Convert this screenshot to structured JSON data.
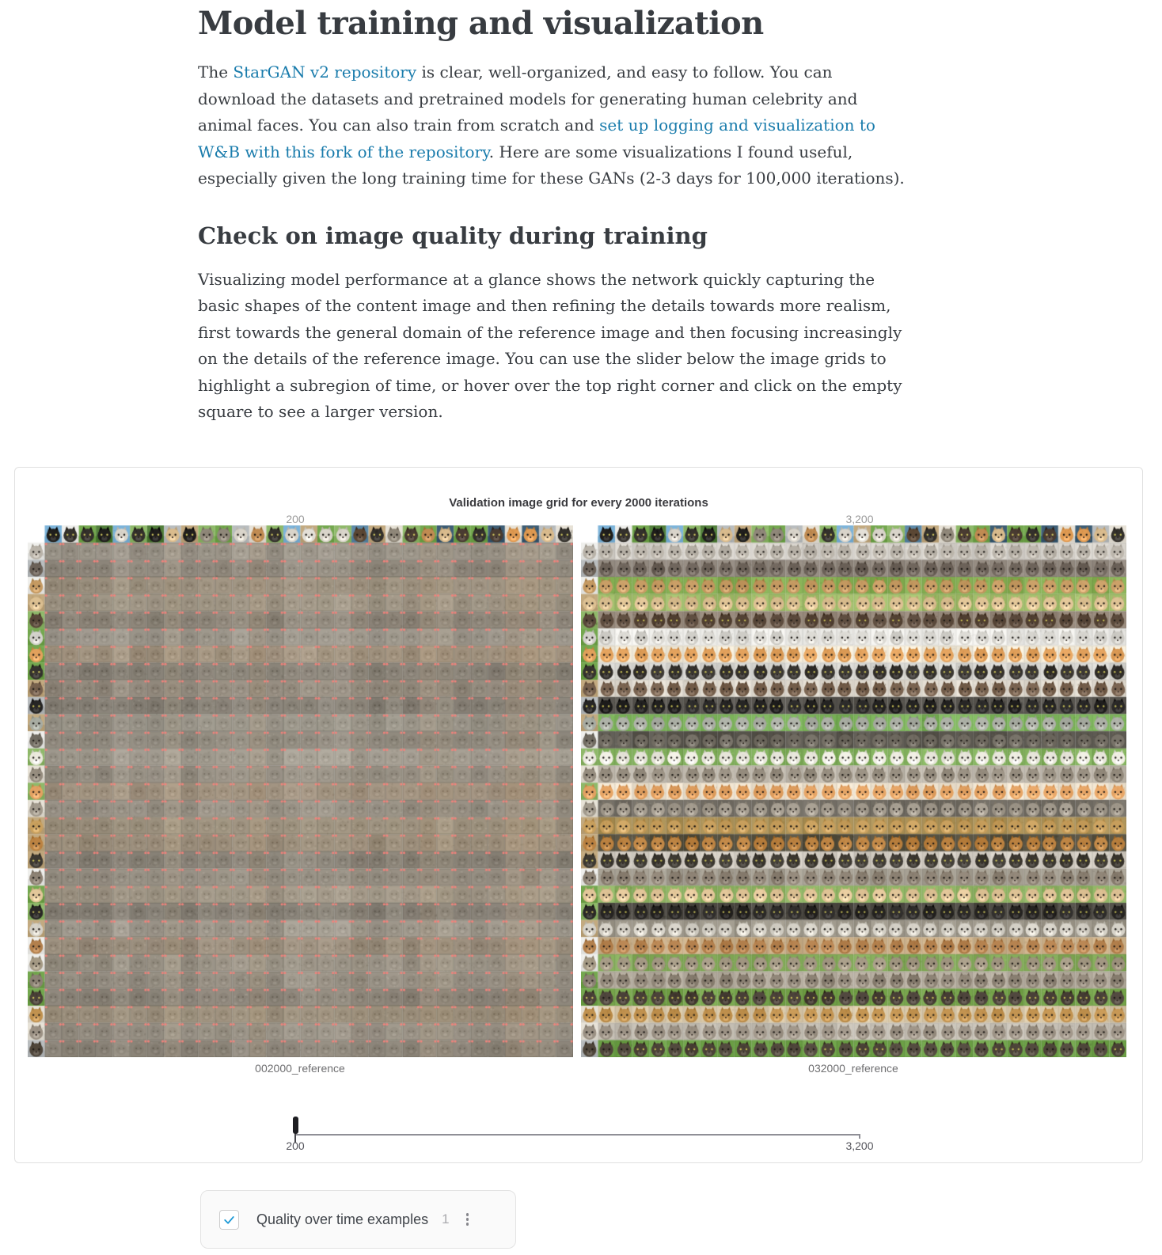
{
  "article": {
    "h1": "Model training and visualization",
    "p1_lines": [
      [
        {
          "t": "The "
        },
        {
          "t": "StarGAN v2 repository",
          "link": true
        },
        {
          "t": " is clear, well-organized, and easy to follow. You can"
        }
      ],
      [
        {
          "t": "download the datasets and pretrained models for generating human celebrity and"
        }
      ],
      [
        {
          "t": "animal faces. You can also train from scratch and "
        },
        {
          "t": "set up logging and visualization to",
          "link": true
        }
      ],
      [
        {
          "t": "W&B with this fork of the repository",
          "link": true
        },
        {
          "t": ". Here are some visualizations I found useful,"
        }
      ],
      [
        {
          "t": "especially given the long training time for these GANs (2-3 days for 100,000 iterations)."
        }
      ]
    ],
    "h2": "Check on image quality during training",
    "p2_lines": [
      [
        {
          "t": "Visualizing model performance at a glance shows the network quickly capturing the"
        }
      ],
      [
        {
          "t": "basic shapes of the content image and then refining the details towards more realism,"
        }
      ],
      [
        {
          "t": "first towards the general domain of the reference image and then focusing increasingly"
        }
      ],
      [
        {
          "t": "on the details of the reference image. You can use the slider below the image grids to"
        }
      ],
      [
        {
          "t": "highlight a subregion of time, or hover over the top right corner and click on the empty"
        }
      ],
      [
        {
          "t": "square to see a larger version."
        }
      ]
    ]
  },
  "panel": {
    "title": "Validation image grid for every 2000 iterations",
    "top_slider": {
      "min": "200",
      "max": "3,200"
    },
    "bottom_slider": {
      "min": "200",
      "max": "3,200"
    },
    "grids": [
      {
        "caption": "002000_reference",
        "stage": "early"
      },
      {
        "caption": "032000_reference",
        "stage": "late"
      }
    ]
  },
  "panel_selector": {
    "label": "Quality over time examples",
    "count": "1",
    "checked": true,
    "menu_icon": "kebab-menu-icon",
    "check_color": "#1e9ad6"
  },
  "colors": {
    "link": "#1a7cac",
    "heading": "#383c41",
    "panel_border": "#e0e0e0",
    "caption": "#6e6e70",
    "slider_handle": "#1e1e22"
  },
  "grid_style": {
    "columns": 32,
    "rows": 31,
    "early_base": "#9d968a",
    "cell_dot_color": "#f4837b",
    "thumb_bgs": [
      "#74a84f",
      "#7db4da",
      "#e7e2d7",
      "#c3aa80",
      "#53803c",
      "#b9bdbf",
      "#8fb96a",
      "#5d89a8",
      "#efefec",
      "#3e5e76"
    ],
    "thumb_furs": [
      "#c08b52",
      "#8a6a43",
      "#33302b",
      "#d9d4ca",
      "#df9a52",
      "#8f8779",
      "#5b4734",
      "#b9b1a5",
      "#d9bb8d",
      "#493b31",
      "#e4e0d8",
      "#1f1e1c"
    ],
    "source_bgs": [
      "#74a84f",
      "#e7e2d7",
      "#c3aa80",
      "#b9bdbf",
      "#8fb96a",
      "#efefec"
    ],
    "row_themes": [
      {
        "f": "#b9b3a9",
        "b": "#d6d2cb"
      },
      {
        "f": "#6b6158",
        "b": "#938a80"
      },
      {
        "f": "#c59a62",
        "b": "#83ad51"
      },
      {
        "f": "#dcc092",
        "b": "#a3c06c"
      },
      {
        "f": "#584739",
        "b": "#96887a"
      },
      {
        "f": "#d4d2cc",
        "b": "#efeeea"
      },
      {
        "f": "#e2a15c",
        "b": "#f4ecda"
      },
      {
        "f": "#35322e",
        "b": "#d9d8d3"
      },
      {
        "f": "#76604d",
        "b": "#e2dcd1"
      },
      {
        "f": "#262524",
        "b": "#5a5751"
      },
      {
        "f": "#a8aca2",
        "b": "#7cb45a"
      },
      {
        "f": "#716c62",
        "b": "#5a574f"
      },
      {
        "f": "#eceadf",
        "b": "#82b15c"
      },
      {
        "f": "#968d7f",
        "b": "#c0b9ad"
      },
      {
        "f": "#e2a162",
        "b": "#f0e4d0"
      },
      {
        "f": "#a29a8d",
        "b": "#716c63"
      },
      {
        "f": "#c9a05e",
        "b": "#ac9258"
      },
      {
        "f": "#bc8342",
        "b": "#55503f"
      },
      {
        "f": "#3c3831",
        "b": "#d2ccc2"
      },
      {
        "f": "#8d8274",
        "b": "#a7a194"
      },
      {
        "f": "#e3c79a",
        "b": "#8fb463"
      },
      {
        "f": "#2a2826",
        "b": "#4f4c45"
      },
      {
        "f": "#d6d2c8",
        "b": "#9b9588"
      },
      {
        "f": "#b3804d",
        "b": "#cbb089"
      },
      {
        "f": "#a59a85",
        "b": "#83ab58"
      },
      {
        "f": "#8c8274",
        "b": "#b5ad9f"
      },
      {
        "f": "#4a4138",
        "b": "#77a54c"
      },
      {
        "f": "#c1924f",
        "b": "#d9c8a8"
      },
      {
        "f": "#9b9184",
        "b": "#c6c0b5"
      },
      {
        "f": "#4f463b",
        "b": "#6fa349"
      }
    ]
  }
}
